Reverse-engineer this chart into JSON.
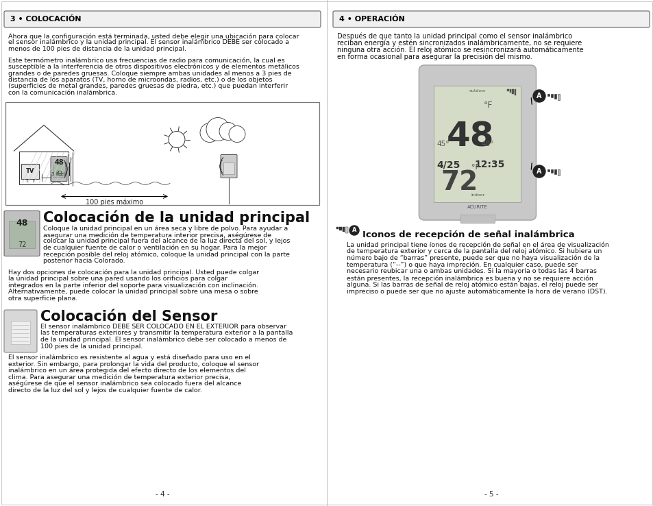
{
  "bg_color": "#ffffff",
  "page_width": 9.54,
  "page_height": 7.38,
  "left_panel": {
    "header_text": "3 • COLOCACIÓN",
    "para1_lines": [
      "Ahora que la configuración está terminada, usted debe elegir una ubicación para colocar",
      "el sensor inalámbrico y la unidad principal. El sensor inalámbrico DEBE ser colocado a",
      "menos de 100 pies de distancia de la unidad principal."
    ],
    "para2_lines": [
      "Este termómetro inalámbrico usa frecuencias de radio para comunicación, la cual es",
      "susceptible a la interferencia de otros dispositivos electrónicos y de elementos metálicos",
      "grandes o de paredes gruesas. Coloque siempre ambas unidades al menos a 3 pies de",
      "distancia de los aparatos (TV, horno de microondas, radios, etc.) o de los objetos",
      "(superficies de metal grandes, paredes gruesas de piedra, etc.) que puedan interferir",
      "con la comunicación inalámbrica."
    ],
    "diagram_caption": "100 pies máximo",
    "section1_title": "Colocación de la unidad principal",
    "section1_para1_lines": [
      "Coloque la unidad principal en un área seca y libre de polvo. Para ayudar a",
      "asegurar una medición de temperatura interior precisa, aségúrese de",
      "colocar la unidad principal fuera del alcance de la luz directa del sol, y lejos",
      "de cualquier fuente de calor o ventilación en su hogar. Para la mejor",
      "recepción posible del reloj atómico, coloque la unidad principal con la parte",
      "posterior hacia Colorado."
    ],
    "section1_para2_lines": [
      "Hay dos opciones de colocación para la unidad principal. Usted puede colgar",
      "la unidad principal sobre una pared usando los orificios para colgar",
      "integrados en la parte inferior del soporte para visualización con inclinación.",
      "Alternativamente, puede colocar la unidad principal sobre una mesa o sobre",
      "otra superficie plana."
    ],
    "section2_title": "Colocación del Sensor",
    "section2_para1_lines": [
      "El sensor inalámbrico DEBE SER COLOCADO EN EL EXTERIOR para observar",
      "las temperaturas exteriores y transmitir la temperatura exterior a la pantalla",
      "de la unidad principal. El sensor inalámbrico debe ser colocado a menos de",
      "100 pies de la unidad principal."
    ],
    "section2_para2_lines": [
      "El sensor inalámbrico es resistente al agua y está diseñado para uso en el",
      "exterior. Sin embargo, para prolongar la vida del producto, coloque el sensor",
      "inalámbrico en un área protegida del efecto directo de los elementos del",
      "clima. Para asegurar una medición de temperatura exterior precisa,",
      "aségúrese de que el sensor inalámbrico sea colocado fuera del alcance",
      "directo de la luz del sol y lejos de cualquier fuente de calor."
    ],
    "page_num": "- 4 -"
  },
  "right_panel": {
    "header_text": "4 • OPERACIÓN",
    "para1_lines": [
      "Después de que tanto la unidad principal como el sensor inalámbrico",
      "reciban energía y estén sincronizados inalámbricamente, no se requiere",
      "ninguna otra acción. El reloj atómico se resincronizará automáticamente",
      "en forma ocasional para asegurar la precisión del mismo."
    ],
    "icon_section_title": "Iconos de recepción de señal inalámbrica",
    "icon_para_lines": [
      "La unidad principal tiene íonos de recepción de señal en el área de visualización",
      "de temperatura exterior y cerca de la pantalla del reloj atómico. Si hubiera un",
      "número bajo de “barras” presente, puede ser que no haya visualización de la",
      "temperatura (“--”) o que haya impreción. En cualquier caso, puede ser",
      "necesario reubicar una o ambas unidades. Si la mayoría o todas las 4 barras",
      "están presentes, la recepción inalámbrica es buena y no se requiere acción",
      "alguna. Si las barras de señal de reloj atómico están bajas, el reloj puede ser",
      "impreciso o puede ser que no ajuste automáticamente la hora de verano (DST)."
    ],
    "page_num": "- 5 -"
  }
}
